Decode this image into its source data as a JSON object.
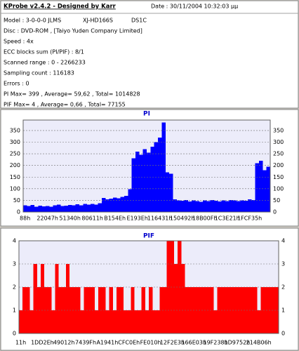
{
  "header": {
    "title": "KProbe v2.4.2 - Designed by Karr",
    "date": "Date : 30/11/2004 10:32:03 μμ"
  },
  "info": {
    "model": "Model : 3-0-0-0 JLMS",
    "drive": "XJ-HD166S",
    "firmware": "DS1C",
    "lines": [
      "Disc : DVD-ROM ,  [Taiyo Yuden Company Limited]",
      "Speed : 4x",
      "ECC blocks sum (PI/PIF) : 8/1",
      "Scanned range : 0 - 2266233",
      "Sampling count : 116183",
      "Errors : 0",
      "PI Max= 399 , Average= 59,62 , Total= 1014828",
      "PIF Max= 4 , Average= 0,66 , Total= 77155"
    ]
  },
  "chart_data": [
    {
      "type": "bar",
      "title": "PI",
      "color": "#0000ff",
      "title_color": "#0000cc",
      "grid": true,
      "ylim": [
        0,
        395
      ],
      "yticks": [
        0,
        50,
        100,
        150,
        200,
        250,
        300,
        350
      ],
      "categories": [
        "88h",
        null,
        null,
        null,
        null,
        null,
        "22047h",
        null,
        null,
        null,
        null,
        null,
        "51340h",
        null,
        null,
        null,
        null,
        null,
        "80611h",
        null,
        null,
        null,
        null,
        null,
        "B154Eh",
        null,
        null,
        null,
        null,
        null,
        "E193Eh",
        null,
        null,
        null,
        null,
        null,
        "116431h",
        null,
        null,
        null,
        null,
        null,
        "150492h",
        null,
        null,
        null,
        null,
        null,
        "18B00Fh",
        null,
        null,
        null,
        null,
        null,
        "1C3E21h",
        null,
        null,
        null,
        null,
        null,
        "1FCF35h",
        null,
        null,
        null,
        null,
        null
      ],
      "values": [
        28,
        25,
        30,
        22,
        27,
        24,
        26,
        23,
        29,
        31,
        25,
        27,
        30,
        28,
        33,
        29,
        35,
        31,
        34,
        32,
        38,
        60,
        55,
        58,
        62,
        59,
        65,
        70,
        98,
        230,
        260,
        245,
        270,
        255,
        280,
        300,
        320,
        385,
        170,
        165,
        55,
        50,
        48,
        52,
        45,
        50,
        47,
        44,
        49,
        46,
        51,
        48,
        45,
        50,
        47,
        52,
        49,
        46,
        50,
        48,
        55,
        52,
        210,
        220,
        180,
        195
      ]
    },
    {
      "type": "bar",
      "title": "PIF",
      "color": "#ff0000",
      "title_color": "#0000cc",
      "grid": true,
      "ylim": [
        0,
        4
      ],
      "yticks": [
        0,
        1,
        2,
        3,
        4
      ],
      "categories": [
        "11h",
        null,
        null,
        null,
        null,
        null,
        "1DD2Eh",
        null,
        null,
        null,
        null,
        null,
        "49012h",
        null,
        null,
        null,
        null,
        null,
        "7439Fh",
        null,
        null,
        null,
        null,
        null,
        "A1941h",
        null,
        null,
        null,
        null,
        null,
        "CFC0Eh",
        null,
        null,
        null,
        null,
        null,
        "FE010h",
        null,
        null,
        null,
        null,
        null,
        "12F2E3h",
        null,
        null,
        null,
        null,
        null,
        "166E03h",
        null,
        null,
        null,
        null,
        null,
        "19F238h",
        null,
        null,
        null,
        null,
        null,
        "1D9752h",
        null,
        null,
        null,
        null,
        null,
        "214B06h",
        null,
        null,
        null,
        null,
        null
      ],
      "values": [
        1,
        2,
        2,
        1,
        3,
        2,
        3,
        2,
        2,
        1,
        3,
        2,
        2,
        3,
        2,
        2,
        2,
        1,
        2,
        2,
        2,
        1,
        2,
        2,
        1,
        2,
        1,
        2,
        2,
        1,
        1,
        2,
        1,
        1,
        2,
        1,
        2,
        1,
        1,
        2,
        2,
        4,
        4,
        3,
        4,
        3,
        2,
        2,
        2,
        2,
        2,
        2,
        2,
        2,
        1,
        2,
        2,
        2,
        2,
        2,
        2,
        2,
        2,
        2,
        2,
        2,
        1,
        2,
        2,
        2,
        2,
        2
      ]
    }
  ]
}
